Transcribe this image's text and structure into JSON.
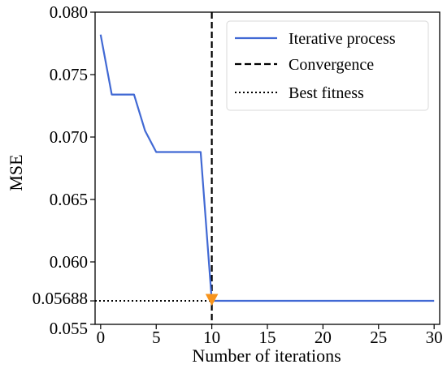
{
  "chart_data": {
    "type": "line",
    "title": "",
    "xlabel": "Number of iterations",
    "ylabel": "MSE",
    "xlim": [
      -0.5,
      30.5
    ],
    "ylim": [
      0.055,
      0.08
    ],
    "x_ticks": [
      0,
      5,
      10,
      15,
      20,
      25,
      30
    ],
    "x_tick_labels": [
      "0",
      "5",
      "10",
      "15",
      "20",
      "25",
      "30"
    ],
    "y_ticks": [
      0.055,
      0.05688,
      0.06,
      0.065,
      0.07,
      0.075,
      0.08
    ],
    "y_tick_labels": [
      "0.055",
      "0.05688",
      "0.060",
      "0.065",
      "0.070",
      "0.075",
      "0.080"
    ],
    "grid": false,
    "legend_position": "top-right",
    "series": [
      {
        "name": "Iterative process",
        "color": "#4169d4",
        "style": "solid",
        "x": [
          0,
          1,
          2,
          3,
          4,
          5,
          6,
          7,
          8,
          9,
          10,
          11,
          12,
          13,
          14,
          15,
          16,
          17,
          18,
          19,
          20,
          21,
          22,
          23,
          24,
          25,
          26,
          27,
          28,
          29,
          30
        ],
        "y": [
          0.0782,
          0.0734,
          0.0734,
          0.0734,
          0.0705,
          0.0688,
          0.0688,
          0.0688,
          0.0688,
          0.0688,
          0.05688,
          0.05688,
          0.05688,
          0.05688,
          0.05688,
          0.05688,
          0.05688,
          0.05688,
          0.05688,
          0.05688,
          0.05688,
          0.05688,
          0.05688,
          0.05688,
          0.05688,
          0.05688,
          0.05688,
          0.05688,
          0.05688,
          0.05688,
          0.05688
        ]
      },
      {
        "name": "Convergence",
        "color": "#000000",
        "style": "dashed",
        "x_value": 10
      },
      {
        "name": "Best fitness",
        "color": "#000000",
        "style": "dotted",
        "y_value": 0.05688
      }
    ],
    "marker": {
      "x": 10,
      "y": 0.05688,
      "shape": "triangle-down",
      "color": "#f7941d"
    }
  }
}
